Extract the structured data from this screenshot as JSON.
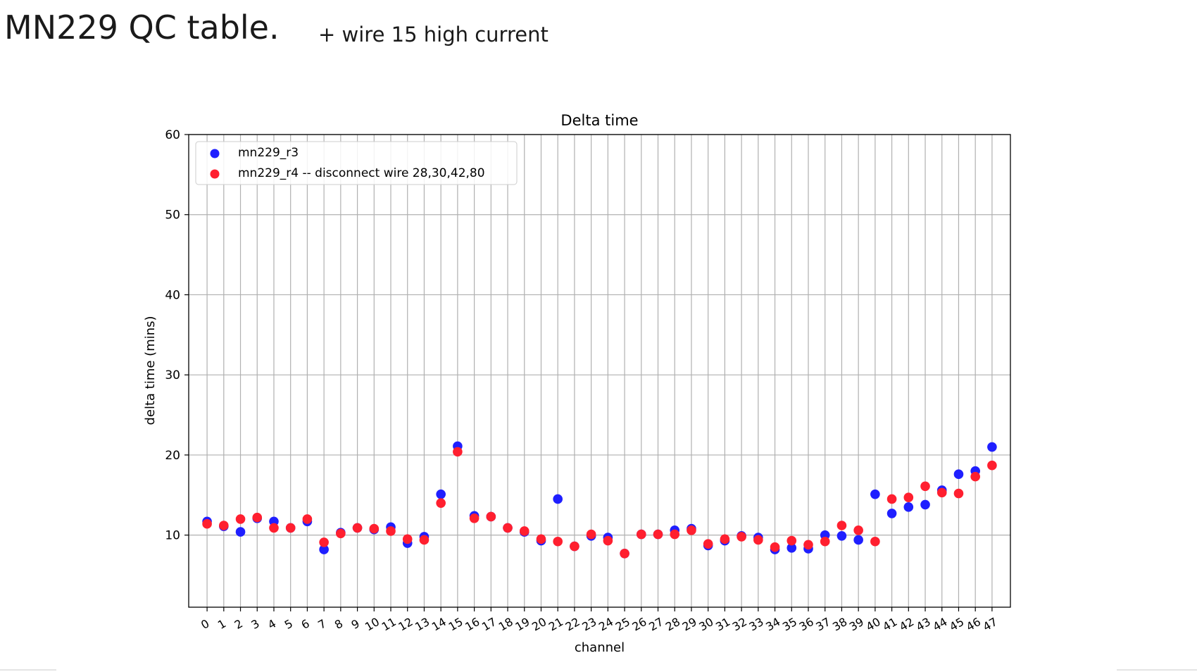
{
  "slide": {
    "title": "MN229 QC table.",
    "subtitle": "+ wire 15 high current"
  },
  "chart_data": {
    "type": "scatter",
    "title": "Delta time",
    "xlabel": "channel",
    "ylabel": "delta time (mins)",
    "xlim": [
      -1.1,
      48.1
    ],
    "ylim": [
      1,
      60
    ],
    "yticks": [
      10,
      20,
      30,
      40,
      50,
      60
    ],
    "x": [
      0,
      1,
      2,
      3,
      4,
      5,
      6,
      7,
      8,
      9,
      10,
      11,
      12,
      13,
      14,
      15,
      16,
      17,
      18,
      19,
      20,
      21,
      22,
      23,
      24,
      25,
      26,
      27,
      28,
      29,
      30,
      31,
      32,
      33,
      34,
      35,
      36,
      37,
      38,
      39,
      40,
      41,
      42,
      43,
      44,
      45,
      46,
      47
    ],
    "grid": true,
    "legend_position": "upper-left",
    "series": [
      {
        "name": "mn229_r3",
        "color": "#1f1fff",
        "values": [
          11.7,
          11.1,
          10.4,
          12.1,
          11.7,
          10.9,
          11.7,
          8.2,
          10.3,
          10.9,
          10.7,
          11.0,
          9.0,
          9.8,
          15.1,
          21.1,
          12.4,
          12.3,
          10.9,
          10.4,
          9.3,
          14.5,
          8.6,
          9.9,
          9.7,
          7.7,
          10.1,
          10.1,
          10.6,
          10.8,
          8.7,
          9.3,
          9.9,
          9.7,
          8.2,
          8.4,
          8.3,
          10.0,
          9.9,
          9.4,
          15.1,
          12.7,
          13.5,
          13.8,
          15.6,
          17.6,
          18.0,
          21.0
        ]
      },
      {
        "name": "mn229_r4 -- disconnect wire 28,30,42,80",
        "color": "#ff1f2f",
        "values": [
          11.4,
          11.2,
          12.0,
          12.2,
          10.9,
          10.9,
          12.0,
          9.1,
          10.2,
          10.9,
          10.8,
          10.5,
          9.5,
          9.4,
          14.0,
          20.4,
          12.1,
          12.3,
          10.9,
          10.5,
          9.5,
          9.2,
          8.6,
          10.1,
          9.3,
          7.7,
          10.1,
          10.1,
          10.1,
          10.6,
          8.9,
          9.5,
          9.8,
          9.4,
          8.5,
          9.3,
          8.8,
          9.2,
          11.2,
          10.6,
          9.2,
          14.5,
          14.7,
          16.1,
          15.3,
          15.2,
          17.3,
          18.7
        ]
      }
    ]
  }
}
